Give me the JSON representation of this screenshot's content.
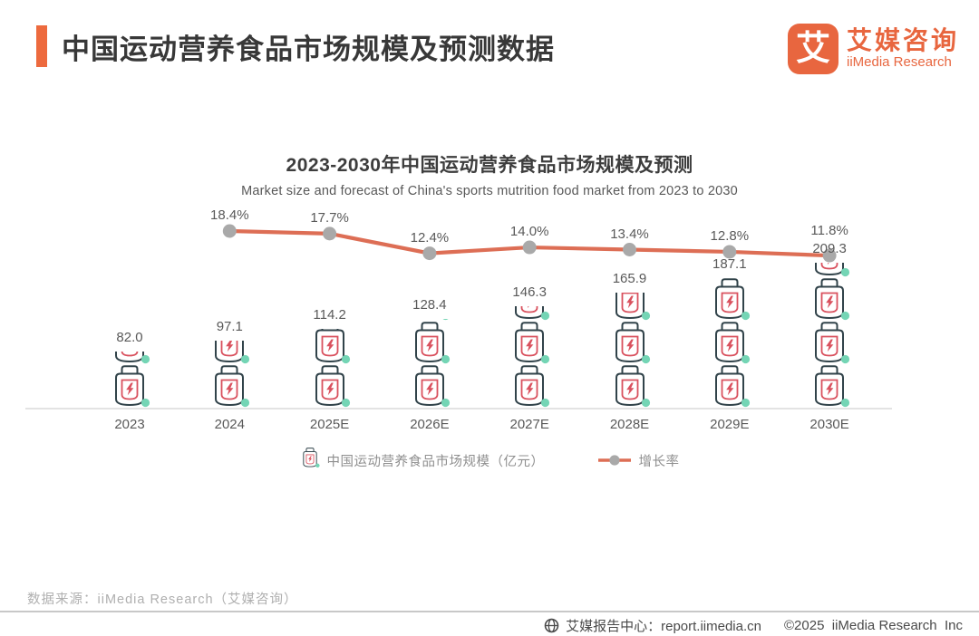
{
  "header": {
    "title": "中国运动营养食品市场规模及预测数据",
    "logo": {
      "glyph": "艾",
      "name_cn": "艾媒咨询",
      "name_en": "iiMedia Research"
    }
  },
  "chart_data": {
    "type": "bar",
    "subtype": "pictorial-jar-bars-with-growth-line",
    "title": "2023-2030年中国运动营养食品市场规模及预测",
    "subtitle": "Market size and forecast of China's sports mutrition food market  from 2023 to 2030",
    "categories": [
      "2023",
      "2024",
      "2025E",
      "2026E",
      "2027E",
      "2028E",
      "2029E",
      "2030E"
    ],
    "series": [
      {
        "name": "中国运动营养食品市场规模（亿元）",
        "type": "bar",
        "values": [
          82.0,
          97.1,
          114.2,
          128.4,
          146.3,
          165.9,
          187.1,
          209.3
        ]
      },
      {
        "name": "增长率",
        "type": "line",
        "unit": "%",
        "values": [
          null,
          18.4,
          17.7,
          12.4,
          14.0,
          13.4,
          12.8,
          11.8
        ]
      }
    ],
    "value_labels": [
      "82.0",
      "97.1",
      "114.2",
      "128.4",
      "146.3",
      "165.9",
      "187.1",
      "209.3"
    ],
    "rate_labels": [
      "18.4%",
      "17.7%",
      "12.4%",
      "14.0%",
      "13.4%",
      "12.8%",
      "11.8%"
    ],
    "grid": false,
    "legend_position": "bottom"
  },
  "legend": {
    "items": [
      {
        "label": "中国运动营养食品市场规模（亿元）",
        "marker": "jar-icon"
      },
      {
        "label": "增长率",
        "marker": "line-dot-marker"
      }
    ]
  },
  "footer": {
    "source": "数据来源：iiMedia Research（艾媒咨询）"
  },
  "bottom_bar": {
    "report_center": "艾媒报告中心：report.iimedia.cn",
    "copyright": "©2025  iiMedia Research  Inc"
  },
  "colors": {
    "accent_orange": "#ED6A3E",
    "line": "#DD6E55",
    "dot": "#A9A9A9",
    "jar_outline": "#31434A",
    "jar_red": "#D9515E",
    "jar_teal": "#74D5B5",
    "label_gray": "#595959"
  }
}
